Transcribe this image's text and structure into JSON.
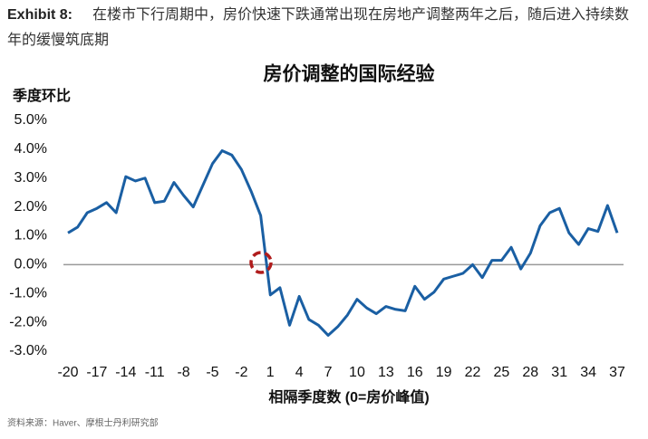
{
  "header": {
    "label": "Exhibit 8:",
    "text": "在楼市下行周期中，房价快速下跌通常出现在房地产调整两年之后，随后进入持续数年的缓慢筑底期"
  },
  "chart_data": {
    "type": "line",
    "title": "房价调整的国际经验",
    "y_label": "季度环比",
    "x_label": "相隔季度数 (0=房价峰值)",
    "x": [
      -20,
      -19,
      -18,
      -17,
      -16,
      -15,
      -14,
      -13,
      -12,
      -11,
      -10,
      -9,
      -8,
      -7,
      -6,
      -5,
      -4,
      -3,
      -2,
      -1,
      0,
      1,
      2,
      3,
      4,
      5,
      6,
      7,
      8,
      9,
      10,
      11,
      12,
      13,
      14,
      15,
      16,
      17,
      18,
      19,
      20,
      21,
      22,
      23,
      24,
      25,
      26,
      27,
      28,
      29,
      30,
      31,
      32,
      33,
      34,
      35,
      36,
      37
    ],
    "values": [
      1.1,
      1.3,
      1.8,
      1.95,
      2.15,
      1.8,
      3.05,
      2.9,
      3.0,
      2.15,
      2.2,
      2.85,
      2.4,
      2.0,
      2.75,
      3.5,
      3.95,
      3.8,
      3.3,
      2.55,
      1.7,
      -1.05,
      -0.8,
      -2.1,
      -1.1,
      -1.9,
      -2.1,
      -2.45,
      -2.15,
      -1.75,
      -1.2,
      -1.5,
      -1.7,
      -1.45,
      -1.55,
      -1.6,
      -0.75,
      -1.2,
      -0.95,
      -0.5,
      -0.4,
      -0.3,
      0.0,
      -0.45,
      0.15,
      0.15,
      0.6,
      -0.15,
      0.4,
      1.35,
      1.8,
      1.95,
      1.1,
      0.7,
      1.25,
      1.15,
      2.05,
      1.1
    ],
    "color": "#1a5fa3",
    "xlim": [
      -20,
      37
    ],
    "xticks": [
      -20,
      -17,
      -14,
      -11,
      -8,
      -5,
      -2,
      1,
      4,
      7,
      10,
      13,
      16,
      19,
      22,
      25,
      28,
      31,
      34,
      37
    ],
    "ylim": [
      -3,
      5
    ],
    "yticks": [
      {
        "value": 5,
        "label": "5.0%"
      },
      {
        "value": 4,
        "label": "4.0%"
      },
      {
        "value": 3,
        "label": "3.0%"
      },
      {
        "value": 2,
        "label": "2.0%"
      },
      {
        "value": 1,
        "label": "1.0%"
      },
      {
        "value": 0,
        "label": "0.0%"
      },
      {
        "value": -1,
        "label": "-1.0%"
      },
      {
        "value": -2,
        "label": "-2.0%"
      },
      {
        "value": -3,
        "label": "-3.0%"
      }
    ],
    "source": "资料来源：Haver、摩根士丹利研究部"
  }
}
